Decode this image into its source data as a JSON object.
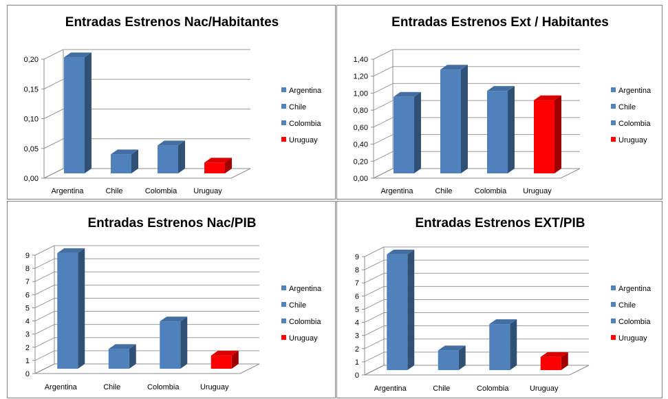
{
  "chart_data": [
    {
      "type": "bar",
      "title": "Entradas Estrenos Nac/Habitantes",
      "categories": [
        "Argentina",
        "Chile",
        "Colombia",
        "Uruguay"
      ],
      "values": [
        0.195,
        0.032,
        0.047,
        0.018
      ],
      "yticks": [
        "0,00",
        "0,05",
        "0,10",
        "0,15",
        "0,20"
      ],
      "ylim": [
        0,
        0.2
      ],
      "legend": [
        "Argentina",
        "Chile",
        "Colombia",
        "Uruguay"
      ],
      "colors": [
        "#4f81bd",
        "#4f81bd",
        "#4f81bd",
        "#ff0000"
      ],
      "grid": true,
      "legend_position": "right"
    },
    {
      "type": "bar",
      "title": "Entradas Estrenos Ext / Habitantes",
      "categories": [
        "Argentina",
        "Chile",
        "Colombia",
        "Uruguay"
      ],
      "values": [
        0.9,
        1.22,
        0.97,
        0.86
      ],
      "yticks": [
        "0,00",
        "0,20",
        "0,40",
        "0,60",
        "0,80",
        "1,00",
        "1,20",
        "1,40"
      ],
      "ylim": [
        0,
        1.4
      ],
      "legend": [
        "Argentina",
        "Chile",
        "Colombia",
        "Uruguay"
      ],
      "colors": [
        "#4f81bd",
        "#4f81bd",
        "#4f81bd",
        "#ff0000"
      ],
      "grid": true,
      "legend_position": "right"
    },
    {
      "type": "bar",
      "title": "Entradas Estrenos Nac/PIB",
      "categories": [
        "Argentina",
        "Chile",
        "Colombia",
        "Uruguay"
      ],
      "values": [
        8.8,
        1.5,
        3.6,
        1.0
      ],
      "yticks": [
        "0",
        "1",
        "2",
        "3",
        "4",
        "5",
        "6",
        "7",
        "8",
        "9"
      ],
      "ylim": [
        0,
        9
      ],
      "legend": [
        "Argentina",
        "Chile",
        "Colombia",
        "Uruguay"
      ],
      "colors": [
        "#4f81bd",
        "#4f81bd",
        "#4f81bd",
        "#ff0000"
      ],
      "grid": true,
      "legend_position": "right"
    },
    {
      "type": "bar",
      "title": "Entradas Estrenos EXT/PIB",
      "categories": [
        "Argentina",
        "Chile",
        "Colombia",
        "Uruguay"
      ],
      "values": [
        8.8,
        1.5,
        3.5,
        1.0
      ],
      "yticks": [
        "0",
        "1",
        "2",
        "3",
        "4",
        "5",
        "6",
        "7",
        "8",
        "9"
      ],
      "ylim": [
        0,
        9
      ],
      "legend": [
        "Argentina",
        "Chile",
        "Colombia",
        "Uruguay"
      ],
      "colors": [
        "#4f81bd",
        "#4f81bd",
        "#4f81bd",
        "#ff0000"
      ],
      "grid": true,
      "legend_position": "right"
    }
  ]
}
